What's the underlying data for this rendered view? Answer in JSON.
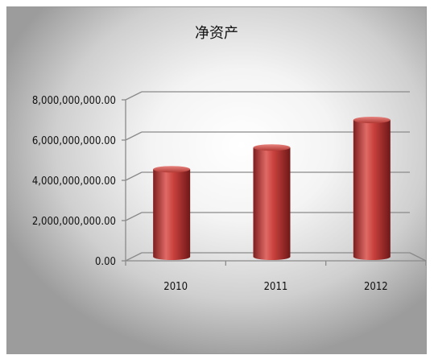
{
  "chart_data": {
    "type": "bar",
    "title": "净资产",
    "categories": [
      "2010",
      "2011",
      "2012"
    ],
    "values": [
      4350000000,
      5430000000,
      6800000000
    ],
    "yticks": [
      "0.00",
      "2,000,000,000.00",
      "4,000,000,000.00",
      "6,000,000,000.00",
      "8,000,000,000.00"
    ],
    "ylim": [
      0,
      8000000000
    ],
    "xlabel": "",
    "ylabel": "",
    "grid": true,
    "legend": "none",
    "bar_color": "#c0392b",
    "style": "3d-cylinder"
  }
}
